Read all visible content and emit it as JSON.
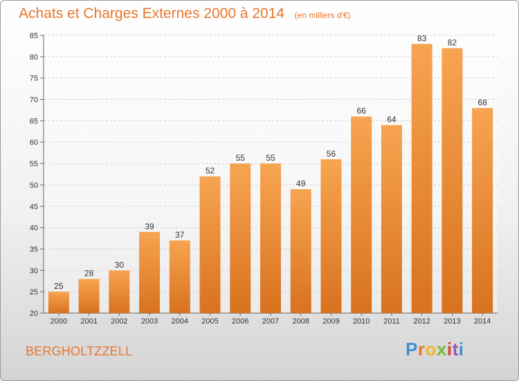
{
  "chart_data": {
    "type": "bar",
    "title": "Achats et Charges Externes 2000 à 2014",
    "subtitle": "(en milliers d'€)",
    "categories": [
      "2000",
      "2001",
      "2002",
      "2003",
      "2004",
      "2005",
      "2006",
      "2007",
      "2008",
      "2009",
      "2010",
      "2011",
      "2012",
      "2013",
      "2014"
    ],
    "values": [
      25,
      28,
      30,
      39,
      37,
      52,
      55,
      55,
      49,
      56,
      66,
      64,
      83,
      82,
      68
    ],
    "ylim": [
      20,
      85
    ],
    "yticks": [
      20,
      25,
      30,
      35,
      40,
      45,
      50,
      55,
      60,
      65,
      70,
      75,
      80,
      85
    ],
    "grid": true,
    "bar_color": "#f0902f"
  },
  "footer": {
    "place": "BERGHOLTZZELL"
  },
  "logo": {
    "text": "Proxiti"
  }
}
